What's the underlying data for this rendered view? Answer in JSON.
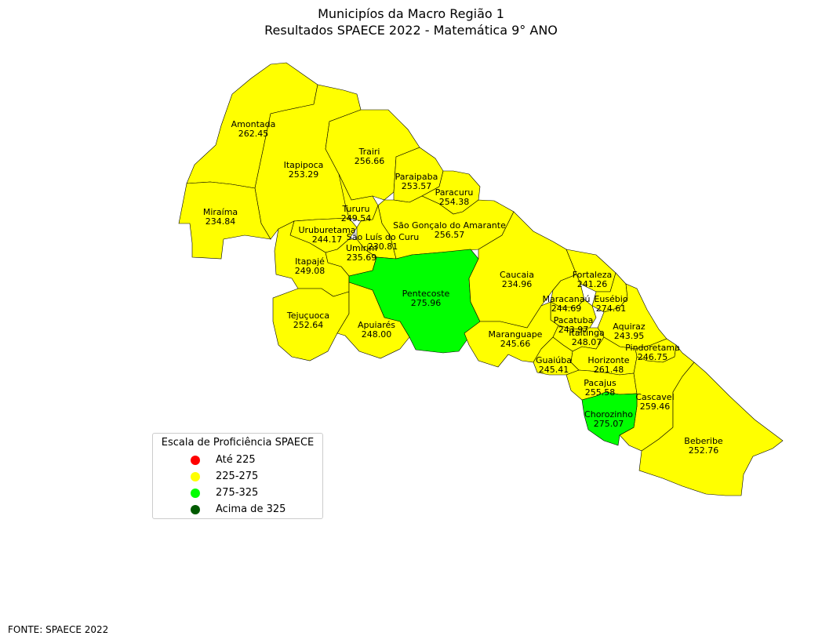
{
  "title_line1": "Municipíos da Macro Região 1",
  "title_line2": "Resultados SPAECE 2022 - Matemática 9° ANO",
  "colors": {
    "ate_225": "#ff0000",
    "r225_275": "#ffff00",
    "r275_325": "#00ff00",
    "acima_325": "#005a00",
    "border": "#000000"
  },
  "municipalities": [
    {
      "name": "Amontada",
      "score": "262.45",
      "class": "r225_275"
    },
    {
      "name": "Itapipoca",
      "score": "253.29",
      "class": "r225_275"
    },
    {
      "name": "Trairi",
      "score": "256.66",
      "class": "r225_275"
    },
    {
      "name": "Miraíma",
      "score": "234.84",
      "class": "r225_275"
    },
    {
      "name": "Paraipaba",
      "score": "253.57",
      "class": "r225_275"
    },
    {
      "name": "Paracuru",
      "score": "254.38",
      "class": "r225_275"
    },
    {
      "name": "Tururu",
      "score": "249.54",
      "class": "r225_275"
    },
    {
      "name": "São Gonçalo do Amarante",
      "score": "256.57",
      "class": "r225_275"
    },
    {
      "name": "Uruburetama",
      "score": "244.17",
      "class": "r225_275"
    },
    {
      "name": "São Luís do Curu",
      "score": "230.81",
      "class": "r225_275"
    },
    {
      "name": "Umirim",
      "score": "235.69",
      "class": "r225_275"
    },
    {
      "name": "Itapajé",
      "score": "249.08",
      "class": "r225_275"
    },
    {
      "name": "Pentecoste",
      "score": "275.96",
      "class": "r275_325"
    },
    {
      "name": "Caucaia",
      "score": "234.96",
      "class": "r225_275"
    },
    {
      "name": "Fortaleza",
      "score": "241.26",
      "class": "r225_275"
    },
    {
      "name": "Tejuçuoca",
      "score": "252.64",
      "class": "r225_275"
    },
    {
      "name": "Apuiarés",
      "score": "248.00",
      "class": "r225_275"
    },
    {
      "name": "Maracanaú",
      "score": "244.69",
      "class": "r225_275"
    },
    {
      "name": "Eusébio",
      "score": "274.61",
      "class": "r225_275"
    },
    {
      "name": "Pacatuba",
      "score": "243.97",
      "class": "r225_275"
    },
    {
      "name": "Aquiraz",
      "score": "243.95",
      "class": "r225_275"
    },
    {
      "name": "Maranguape",
      "score": "245.66",
      "class": "r225_275"
    },
    {
      "name": "Itaitinga",
      "score": "248.07",
      "class": "r225_275"
    },
    {
      "name": "Pindoretama",
      "score": "246.75",
      "class": "r225_275"
    },
    {
      "name": "Guaiúba",
      "score": "245.41",
      "class": "r225_275"
    },
    {
      "name": "Horizonte",
      "score": "261.48",
      "class": "r225_275"
    },
    {
      "name": "Pacajus",
      "score": "255.58",
      "class": "r225_275"
    },
    {
      "name": "Cascavel",
      "score": "259.46",
      "class": "r225_275"
    },
    {
      "name": "Chorozinho",
      "score": "275.07",
      "class": "r275_325"
    },
    {
      "name": "Beberibe",
      "score": "252.76",
      "class": "r225_275"
    }
  ],
  "legend": {
    "title": "Escala de Proficiência SPAECE",
    "items": [
      {
        "label": "Até 225",
        "color": "#ff0000"
      },
      {
        "label": "225-275",
        "color": "#ffff00"
      },
      {
        "label": "275-325",
        "color": "#00ff00"
      },
      {
        "label": "Acima de 325",
        "color": "#005a00"
      }
    ]
  },
  "source": "FONTE: SPAECE 2022"
}
